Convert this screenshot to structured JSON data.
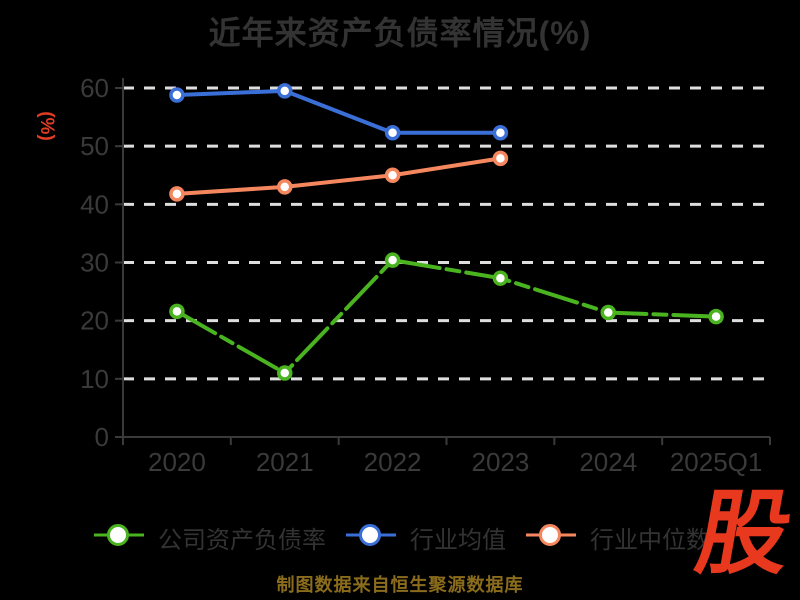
{
  "page": {
    "background": "#000000"
  },
  "chart": {
    "title": "近年来资产负债率情况(%)",
    "y_unit_label": "(%)"
  },
  "chart_data": {
    "type": "line",
    "title": "近年来资产负债率情况(%)",
    "categories": [
      "2020",
      "2021",
      "2022",
      "2023",
      "2024",
      "2025Q1"
    ],
    "series": [
      {
        "name": "公司资产负债率",
        "color": "#4ab420",
        "line_style": "dash-dot",
        "values": [
          21.6,
          11.0,
          30.4,
          27.3,
          21.4,
          20.7
        ]
      },
      {
        "name": "行业均值",
        "color": "#3a6fd8",
        "line_style": "solid",
        "values": [
          58.8,
          59.5,
          52.3,
          52.3,
          null,
          null
        ]
      },
      {
        "name": "行业中位数",
        "color": "#f5875f",
        "line_style": "solid",
        "values": [
          41.8,
          43.0,
          45.0,
          47.9,
          null,
          null
        ]
      }
    ],
    "xlabel": "",
    "ylabel": "(%)",
    "ylim": [
      0,
      60
    ],
    "y_ticks": [
      0,
      10,
      20,
      30,
      40,
      50,
      60
    ],
    "grid": "horizontal-dashed-white",
    "legend_position": "bottom",
    "marker": "circle-white-fill"
  },
  "footer": {
    "source": "制图数据来自恒生聚源数据库",
    "logo_text": "股"
  },
  "colors": {
    "title_text": "#333333",
    "axis": "#3a3a3a",
    "tick_label": "#3a3a3a",
    "gridline": "#dedede",
    "accent_red": "#e23c24",
    "logo_red": "#e8391f",
    "source_text": "#8a6c1c"
  }
}
